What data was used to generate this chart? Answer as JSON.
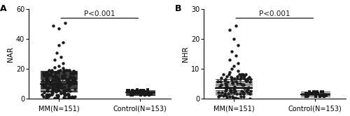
{
  "panel_A": {
    "label": "A",
    "ylabel": "NAR",
    "ylim": [
      0,
      60
    ],
    "yticks": [
      0,
      20,
      40,
      60
    ],
    "groups": [
      "MM(N=151)",
      "Control(N=153)"
    ],
    "pvalue_text": "P<0.001",
    "mm_median": 10.0,
    "mm_iqr_low": 5.0,
    "mm_iqr_high": 19.0,
    "ctrl_median": 4.5,
    "ctrl_iqr_low": 2.5,
    "ctrl_iqr_high": 6.0,
    "mm_outliers_y": [
      47,
      49,
      51,
      36,
      38,
      31,
      28,
      26,
      24,
      22,
      21,
      20.5
    ],
    "mm_outliers_x": [
      0.0,
      -0.15,
      0.15,
      0.0,
      0.1,
      -0.05,
      0.05,
      -0.1,
      0.1,
      0.0,
      -0.1,
      0.1
    ]
  },
  "panel_B": {
    "label": "B",
    "ylabel": "NHR",
    "ylim": [
      0,
      30
    ],
    "yticks": [
      0,
      10,
      20,
      30
    ],
    "groups": [
      "MM(N=151)",
      "Control(N=153)"
    ],
    "pvalue_text": "P<0.001",
    "mm_median": 3.5,
    "mm_iqr_low": 1.5,
    "mm_iqr_high": 6.5,
    "ctrl_median": 1.5,
    "ctrl_iqr_low": 0.8,
    "ctrl_iqr_high": 2.5,
    "mm_outliers_y": [
      24.5,
      23.0,
      20.0,
      18.0,
      16.0,
      14.5,
      13.0,
      12.0,
      11.0,
      10.0,
      9.5,
      9.0
    ],
    "mm_outliers_x": [
      0.05,
      -0.1,
      0.0,
      0.1,
      -0.05,
      0.05,
      -0.1,
      0.1,
      0.0,
      -0.05,
      0.1,
      -0.1
    ]
  },
  "dot_color": "#1a1a1a",
  "line_color": "#1a1a1a",
  "background_color": "#ffffff",
  "font_size": 7,
  "label_fontsize": 9
}
